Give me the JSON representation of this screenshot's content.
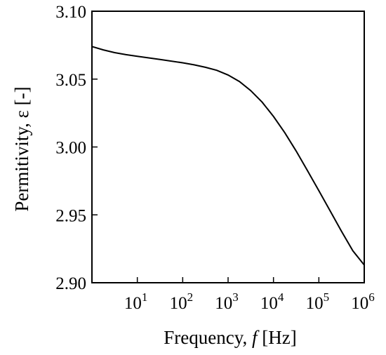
{
  "chart_data": {
    "type": "line",
    "title": "",
    "xlabel": {
      "prefix": "Frequency, ",
      "symbol": "f",
      "suffix": " [Hz]"
    },
    "ylabel": "Permitivity, ε [-]",
    "x_scale": "log",
    "xlim": [
      1,
      1000000
    ],
    "ylim": [
      2.9,
      3.1
    ],
    "x_ticks": [
      {
        "base": "10",
        "exp": "1",
        "value": 10
      },
      {
        "base": "10",
        "exp": "2",
        "value": 100
      },
      {
        "base": "10",
        "exp": "3",
        "value": 1000
      },
      {
        "base": "10",
        "exp": "4",
        "value": 10000
      },
      {
        "base": "10",
        "exp": "5",
        "value": 100000
      },
      {
        "base": "10",
        "exp": "6",
        "value": 1000000
      }
    ],
    "y_ticks": [
      {
        "label": "3.10",
        "value": 3.1
      },
      {
        "label": "3.05",
        "value": 3.05
      },
      {
        "label": "3.00",
        "value": 3.0
      },
      {
        "label": "2.95",
        "value": 2.95
      },
      {
        "label": "2.90",
        "value": 2.9
      }
    ],
    "grid": false,
    "legend": "none",
    "series": [
      {
        "color": "#000000",
        "x": [
          1,
          1.78,
          3.16,
          5.62,
          10,
          31.6,
          100,
          178,
          316,
          562,
          1000,
          1778,
          3162,
          5623,
          10000,
          17783,
          31623,
          56234,
          100000,
          177828,
          316228,
          562341,
          1000000
        ],
        "y": [
          3.074,
          3.0715,
          3.0695,
          3.068,
          3.0668,
          3.0645,
          3.062,
          3.0605,
          3.0587,
          3.0565,
          3.053,
          3.0482,
          3.0415,
          3.033,
          3.0225,
          3.0105,
          2.997,
          2.9825,
          2.9678,
          2.9528,
          2.9378,
          2.9235,
          2.913
        ]
      }
    ]
  }
}
